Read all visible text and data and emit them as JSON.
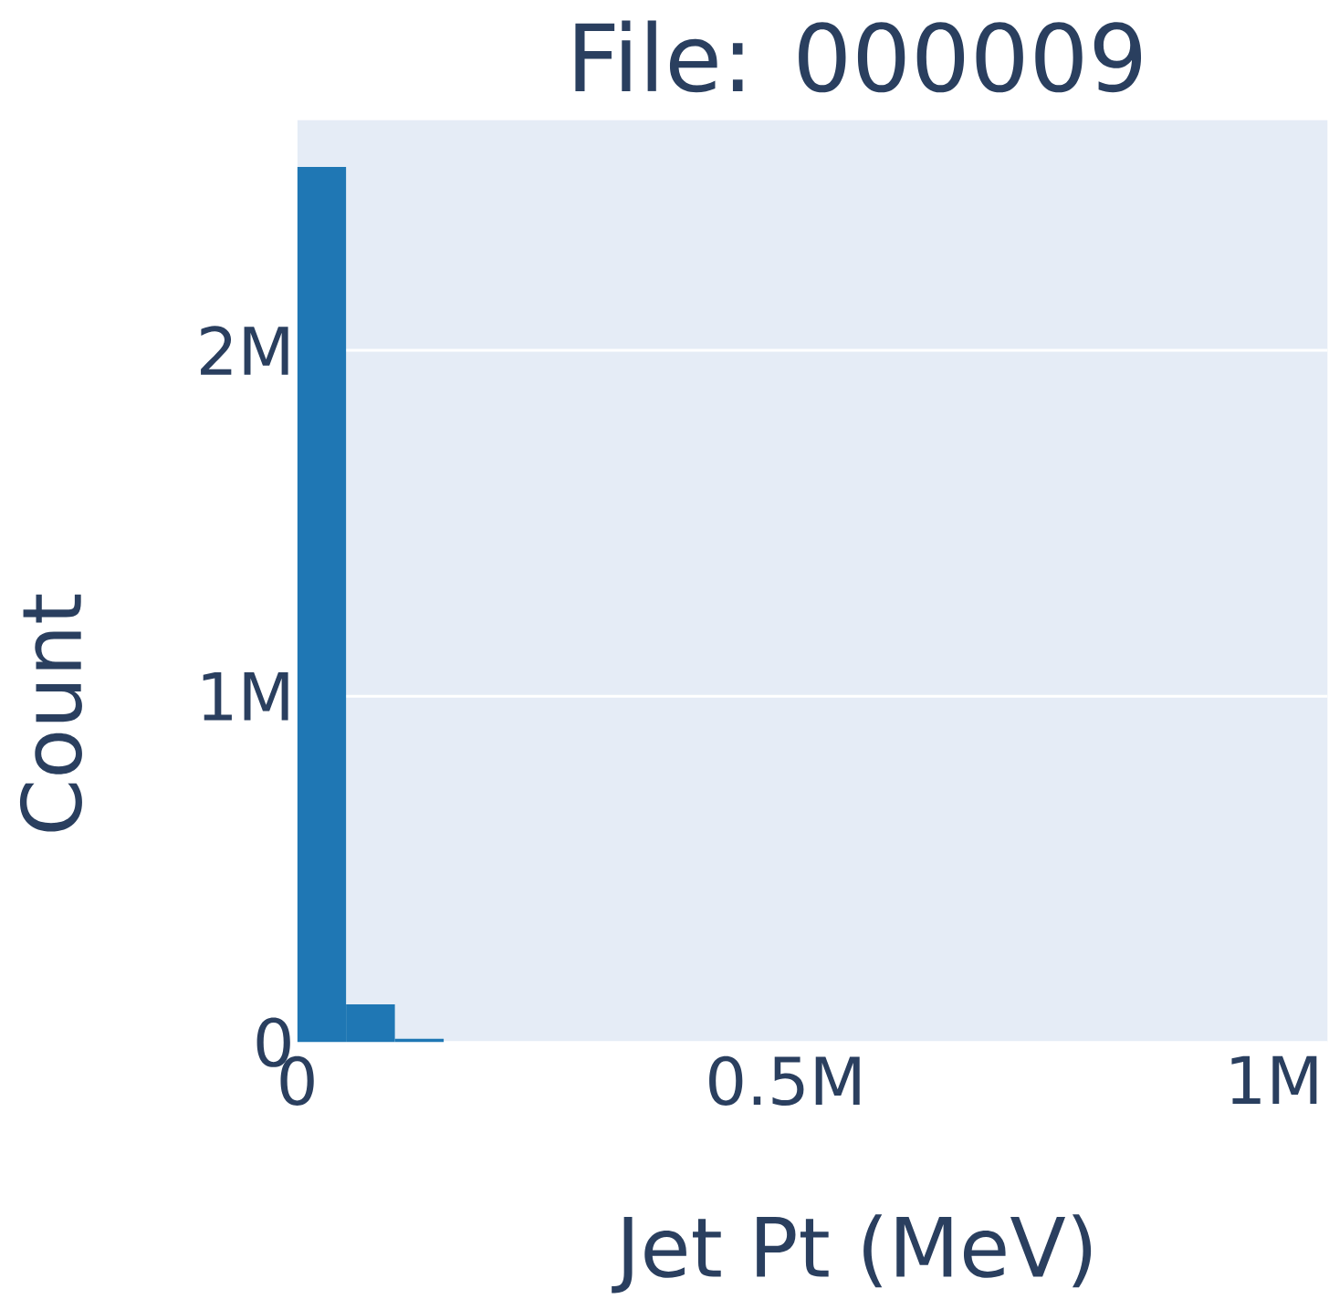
{
  "chart_data": {
    "type": "histogram",
    "title": "File: 000009",
    "xlabel": "Jet Pt (MeV)",
    "ylabel": "Count",
    "bins": [
      0,
      50000,
      100000,
      150000
    ],
    "values": [
      2530000,
      110000,
      10000
    ],
    "color": "#1f77b4",
    "xlim": [
      0,
      1055000
    ],
    "ylim": [
      0,
      2665000
    ],
    "xticks": [
      {
        "value": 0,
        "label": "0"
      },
      {
        "value": 500000,
        "label": "0.5M"
      },
      {
        "value": 1000000,
        "label": "1M"
      }
    ],
    "yticks": [
      {
        "value": 0,
        "label": "0"
      },
      {
        "value": 1000000,
        "label": "1M"
      },
      {
        "value": 2000000,
        "label": "2M"
      }
    ],
    "grid": "y"
  }
}
